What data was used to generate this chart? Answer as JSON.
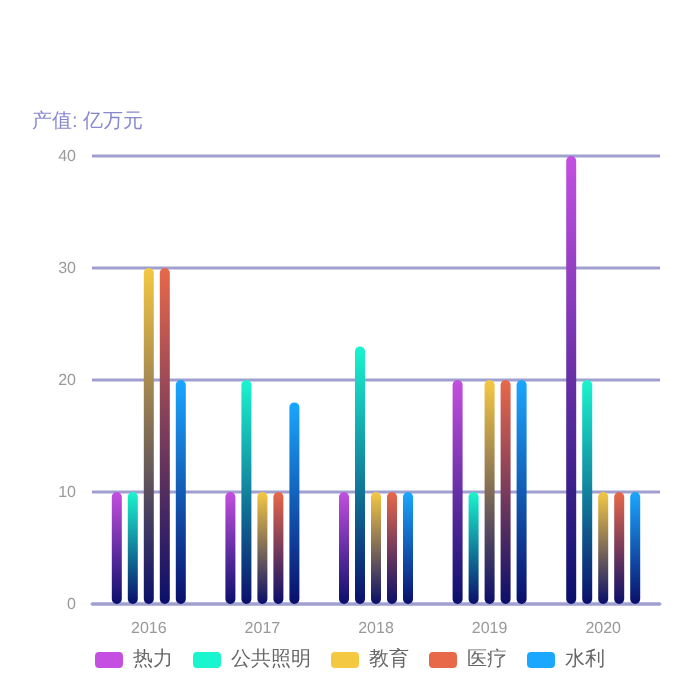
{
  "chart_data": {
    "type": "bar",
    "ylabel": "产值: 亿万元",
    "categories": [
      "2016",
      "2017",
      "2018",
      "2019",
      "2020"
    ],
    "ylim": [
      0,
      40
    ],
    "yticks": [
      0,
      10,
      20,
      30,
      40
    ],
    "grid": "y",
    "legend": "bottom",
    "series": [
      {
        "name": "热力",
        "color": "#c44fe0",
        "values": [
          10,
          10,
          10,
          20,
          40
        ]
      },
      {
        "name": "公共照明",
        "color": "#19f5cf",
        "values": [
          10,
          20,
          23,
          10,
          20
        ]
      },
      {
        "name": "教育",
        "color": "#f5c842",
        "values": [
          30,
          10,
          10,
          20,
          10
        ]
      },
      {
        "name": "医疗",
        "color": "#e8684a",
        "values": [
          30,
          10,
          10,
          20,
          10
        ]
      },
      {
        "name": "水利",
        "color": "#1aa7ff",
        "values": [
          20,
          18,
          10,
          20,
          10
        ]
      }
    ]
  }
}
